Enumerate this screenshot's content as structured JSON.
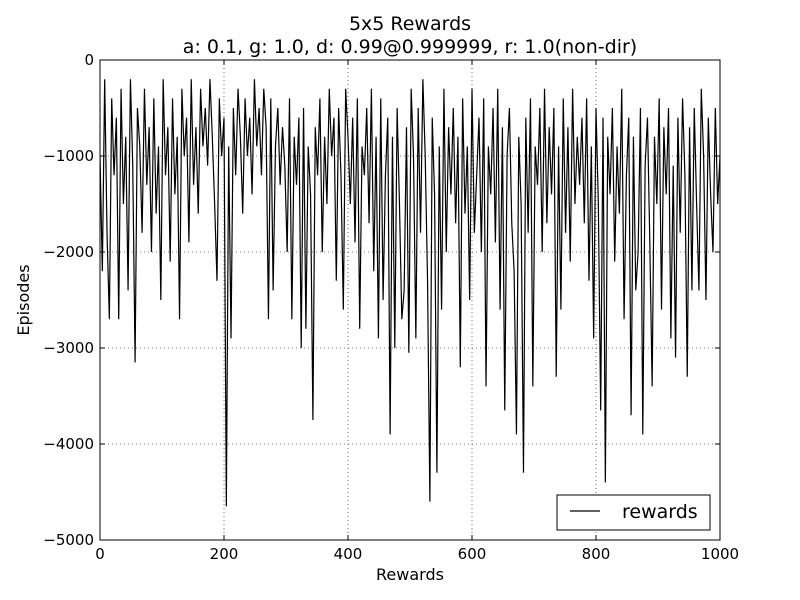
{
  "chart_data": {
    "type": "line",
    "title": "5x5 Rewards",
    "subtitle": "a: 0.1, g: 1.0, d: 0.99@0.999999, r: 1.0(non-dir)",
    "xlabel": "Rewards",
    "ylabel": "Episodes",
    "xlim": [
      0,
      1000
    ],
    "ylim": [
      -5000,
      0
    ],
    "x_ticks": [
      0,
      200,
      400,
      600,
      800,
      1000
    ],
    "y_ticks": [
      0,
      -1000,
      -2000,
      -3000,
      -4000,
      -5000
    ],
    "x_tick_labels": [
      "0",
      "200",
      "400",
      "600",
      "800",
      "1000"
    ],
    "y_tick_labels": [
      "0",
      "−1000",
      "−2000",
      "−3000",
      "−4000",
      "−5000"
    ],
    "grid": true,
    "legend_position": "lower-right",
    "series": [
      {
        "name": "rewards",
        "color": "#000000",
        "x_start": 0,
        "x_step": 1,
        "values": [
          -1000,
          -2200,
          -200,
          -1800,
          -2700,
          -400,
          -1200,
          -600,
          -2700,
          -300,
          -1500,
          -800,
          -2400,
          -200,
          -1100,
          -3150,
          -500,
          -900,
          -1800,
          -300,
          -1300,
          -700,
          -2000,
          -400,
          -1600,
          -900,
          -2500,
          -200,
          -1200,
          -700,
          -2100,
          -400,
          -1400,
          -800,
          -2700,
          -300,
          -1000,
          -600,
          -1900,
          -200,
          -1300,
          -700,
          -1600,
          -300,
          -900,
          -500,
          -1100,
          -200,
          -800,
          -1500,
          -2300,
          -400,
          -1000,
          -600,
          -4650,
          -900,
          -2900,
          -500,
          -1200,
          -300,
          -800,
          -1600,
          -400,
          -1000,
          -600,
          -1400,
          -200,
          -900,
          -500,
          -1200,
          -300,
          -700,
          -2700,
          -400,
          -2400,
          -900,
          -500,
          -1300,
          -700,
          -1100,
          -2000,
          -400,
          -2700,
          -800,
          -1300,
          -600,
          -3000,
          -500,
          -2800,
          -900,
          -1400,
          -3750,
          -700,
          -1200,
          -400,
          -2000,
          -800,
          -1500,
          -300,
          -1000,
          -600,
          -2300,
          -500,
          -1200,
          -2600,
          -300,
          -800,
          -1500,
          -600,
          -1900,
          -400,
          -2800,
          -900,
          -1200,
          -500,
          -1700,
          -300,
          -2200,
          -800,
          -2900,
          -400,
          -2500,
          -1200,
          -600,
          -3900,
          -800,
          -3000,
          -500,
          -1500,
          -2700,
          -2400,
          -700,
          -3050,
          -300,
          -1000,
          -2900,
          -500,
          -1800,
          -200,
          -1000,
          -2300,
          -4600,
          -600,
          -1400,
          -4300,
          -900,
          -2600,
          -300,
          -2000,
          -700,
          -1400,
          -500,
          -1700,
          -800,
          -3200,
          -400,
          -1600,
          -900,
          -2500,
          -300,
          -1800,
          -1200,
          -600,
          -2000,
          -400,
          -3400,
          -900,
          -1400,
          -500,
          -1900,
          -300,
          -2600,
          -700,
          -3650,
          -1000,
          -500,
          -1700,
          -2200,
          -3900,
          -800,
          -1500,
          -4300,
          -600,
          -1800,
          -400,
          -3400,
          -900,
          -1300,
          -500,
          -2000,
          -300,
          -1700,
          -700,
          -1400,
          -500,
          -3300,
          -900,
          -2600,
          -400,
          -1800,
          -700,
          -2100,
          -300,
          -1500,
          -800,
          -1300,
          -600,
          -1700,
          -400,
          -2300,
          -900,
          -2900,
          -500,
          -1500,
          -3650,
          -600,
          -4400,
          -800,
          -1400,
          -500,
          -2100,
          -900,
          -1600,
          -300,
          -2700,
          -1200,
          -600,
          -3700,
          -800,
          -2400,
          -2000,
          -500,
          -3900,
          -1100,
          -600,
          -1900,
          -3400,
          -800,
          -1500,
          -400,
          -2600,
          -700,
          -1400,
          -500,
          -2900,
          -1100,
          -3100,
          -600,
          -1800,
          -400,
          -1200,
          -3300,
          -700,
          -2400,
          -500,
          -1500,
          -2400,
          -300,
          -1000,
          -2500,
          -600,
          -1400,
          -2000,
          -500,
          -1500,
          -1000
        ]
      }
    ]
  },
  "legend": {
    "label": "rewards"
  }
}
